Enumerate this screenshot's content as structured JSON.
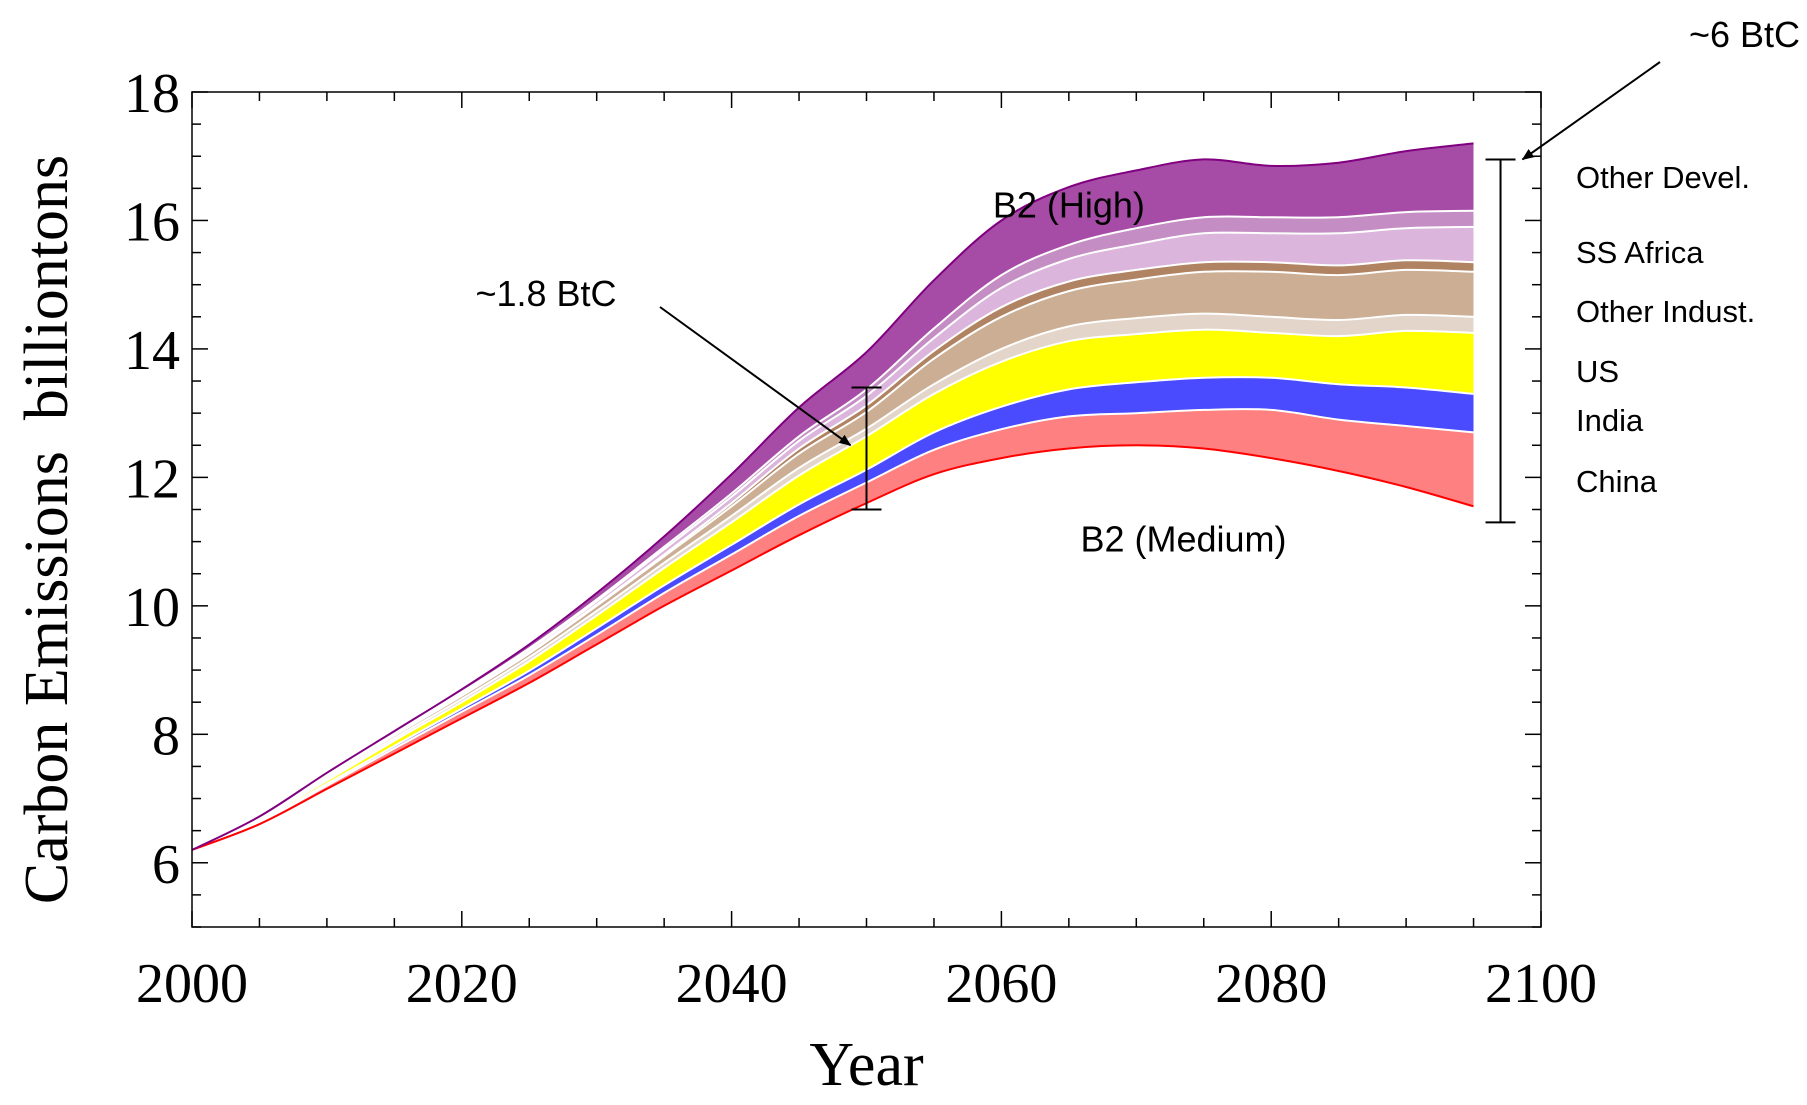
{
  "chart_data": {
    "type": "area",
    "title": "",
    "xlabel": "Year",
    "ylabel": "Carbon Emissions  billiontons",
    "xlim": [
      2000,
      2100
    ],
    "ylim": [
      5,
      18
    ],
    "xticks": [
      2000,
      2020,
      2040,
      2060,
      2080,
      2100
    ],
    "yticks": [
      6,
      8,
      10,
      12,
      14,
      16,
      18
    ],
    "grid": false,
    "x": [
      2000,
      2005,
      2010,
      2015,
      2020,
      2025,
      2030,
      2035,
      2040,
      2045,
      2050,
      2055,
      2060,
      2065,
      2070,
      2075,
      2080,
      2085,
      2090,
      2095
    ],
    "baseline_label": "B2 (Medium)",
    "top_label": "B2 (High)",
    "baseline": [
      6.2,
      6.6,
      7.15,
      7.7,
      8.25,
      8.8,
      9.4,
      10.0,
      10.55,
      11.1,
      11.6,
      12.05,
      12.3,
      12.45,
      12.5,
      12.45,
      12.3,
      12.1,
      11.85,
      11.55
    ],
    "series": [
      {
        "name": "China",
        "values": [
          0,
          0.03,
          0.05,
          0.08,
          0.1,
          0.12,
          0.15,
          0.2,
          0.25,
          0.3,
          0.32,
          0.38,
          0.45,
          0.5,
          0.5,
          0.6,
          0.75,
          0.8,
          0.95,
          1.15
        ]
      },
      {
        "name": "India",
        "values": [
          0,
          0.02,
          0.03,
          0.04,
          0.05,
          0.07,
          0.1,
          0.12,
          0.15,
          0.18,
          0.2,
          0.27,
          0.35,
          0.42,
          0.48,
          0.5,
          0.5,
          0.55,
          0.6,
          0.6
        ]
      },
      {
        "name": "US",
        "values": [
          0,
          0.02,
          0.05,
          0.08,
          0.1,
          0.15,
          0.2,
          0.27,
          0.35,
          0.45,
          0.52,
          0.6,
          0.7,
          0.75,
          0.75,
          0.75,
          0.7,
          0.75,
          0.88,
          0.95
        ]
      },
      {
        "name": "Other Indust.",
        "values": [
          0,
          0.02,
          0.03,
          0.04,
          0.05,
          0.06,
          0.07,
          0.08,
          0.1,
          0.12,
          0.12,
          0.15,
          0.2,
          0.23,
          0.25,
          0.25,
          0.25,
          0.25,
          0.25,
          0.25
        ]
      },
      {
        "name": "SS Africa",
        "values": [
          0,
          0.02,
          0.03,
          0.04,
          0.05,
          0.06,
          0.08,
          0.1,
          0.15,
          0.22,
          0.26,
          0.4,
          0.5,
          0.55,
          0.6,
          0.65,
          0.7,
          0.7,
          0.7,
          0.7
        ]
      },
      {
        "name": "SS Africa (2)",
        "values": [
          0,
          0,
          0.01,
          0.01,
          0.01,
          0.02,
          0.02,
          0.03,
          0.05,
          0.08,
          0.1,
          0.12,
          0.15,
          0.15,
          0.15,
          0.15,
          0.15,
          0.15,
          0.15,
          0.15
        ]
      },
      {
        "name": "Other Devel. (2)",
        "values": [
          0,
          0.01,
          0.02,
          0.03,
          0.03,
          0.04,
          0.05,
          0.08,
          0.1,
          0.12,
          0.15,
          0.2,
          0.3,
          0.35,
          0.4,
          0.45,
          0.45,
          0.5,
          0.5,
          0.55
        ]
      },
      {
        "name": "Other Devel. (3)",
        "values": [
          0,
          0,
          0.01,
          0.01,
          0.02,
          0.02,
          0.03,
          0.04,
          0.05,
          0.07,
          0.1,
          0.15,
          0.2,
          0.22,
          0.25,
          0.25,
          0.25,
          0.25,
          0.25,
          0.25
        ]
      },
      {
        "name": "Other Devel.",
        "values": [
          0,
          0,
          0.02,
          0.02,
          0.04,
          0.06,
          0.1,
          0.16,
          0.3,
          0.45,
          0.58,
          0.75,
          0.85,
          0.9,
          0.9,
          0.9,
          0.8,
          0.85,
          0.95,
          1.05
        ]
      }
    ],
    "colors": [
      "#ff8080",
      "#4a4aff",
      "#ffff00",
      "#e3d5c9",
      "#cbae93",
      "#b08462",
      "#dbb5db",
      "#c48ec4",
      "#a64ca6"
    ],
    "baseline_color": "#ff0000",
    "top_color": "#800080",
    "legend": [
      "Other Devel.",
      "SS Africa",
      "Other Indust.",
      "US",
      "India",
      "China"
    ],
    "legend_placement": "right",
    "annotations": [
      {
        "text": "~1.8 BtC",
        "x": 2050,
        "y_low": 11.5,
        "y_high": 13.4
      },
      {
        "text": "~6 BtC",
        "x": 2097,
        "y_low": 11.3,
        "y_high": 16.95
      }
    ]
  }
}
